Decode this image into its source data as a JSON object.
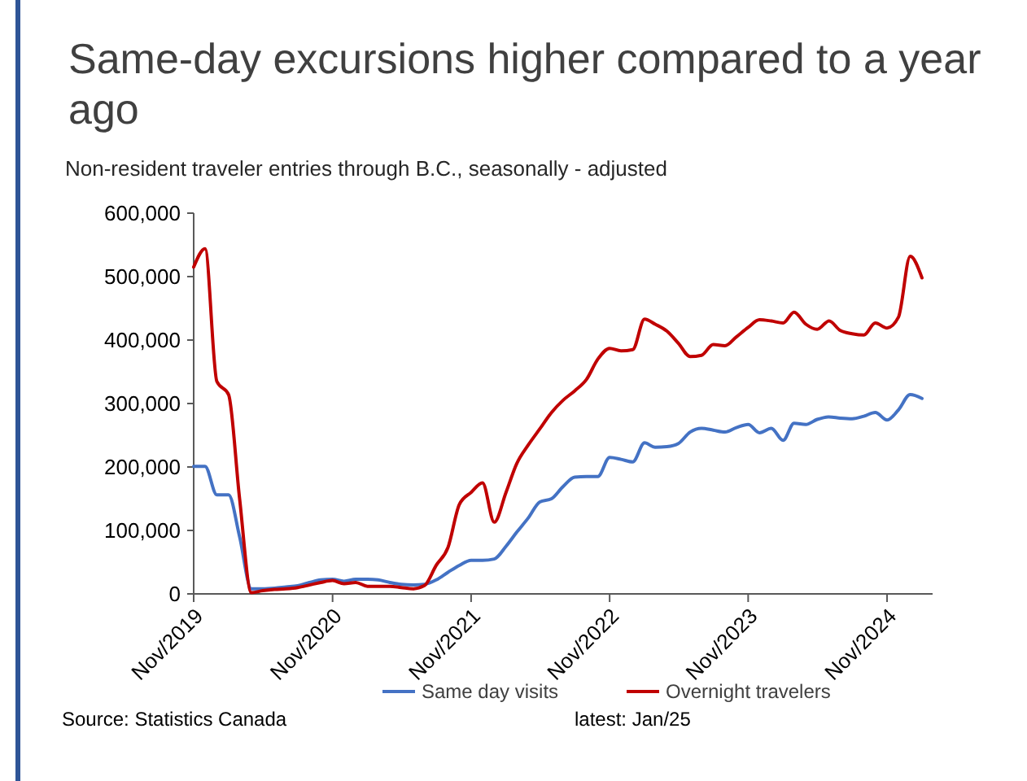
{
  "chart_data": {
    "type": "line",
    "title": "Same-day excursions higher compared to a year ago",
    "subtitle": "Non-resident traveler entries through B.C., seasonally - adjusted",
    "x": [
      "2019-11",
      "2019-12",
      "2020-01",
      "2020-02",
      "2020-03",
      "2020-04",
      "2020-05",
      "2020-06",
      "2020-07",
      "2020-08",
      "2020-09",
      "2020-10",
      "2020-11",
      "2020-12",
      "2021-01",
      "2021-02",
      "2021-03",
      "2021-04",
      "2021-05",
      "2021-06",
      "2021-07",
      "2021-08",
      "2021-09",
      "2021-10",
      "2021-11",
      "2021-12",
      "2022-01",
      "2022-02",
      "2022-03",
      "2022-04",
      "2022-05",
      "2022-06",
      "2022-07",
      "2022-08",
      "2022-09",
      "2022-10",
      "2022-11",
      "2022-12",
      "2023-01",
      "2023-02",
      "2023-03",
      "2023-04",
      "2023-05",
      "2023-06",
      "2023-07",
      "2023-08",
      "2023-09",
      "2023-10",
      "2023-11",
      "2023-12",
      "2024-01",
      "2024-02",
      "2024-03",
      "2024-04",
      "2024-05",
      "2024-06",
      "2024-07",
      "2024-08",
      "2024-09",
      "2024-10",
      "2024-11",
      "2024-12",
      "2025-01",
      "2025-02"
    ],
    "series": [
      {
        "name": "Same day visits",
        "color": "#4472c4",
        "values": [
          201000,
          201000,
          156000,
          156000,
          90000,
          8000,
          8000,
          9000,
          11000,
          13000,
          18000,
          22000,
          23000,
          20000,
          23000,
          23000,
          22000,
          18000,
          15000,
          14000,
          15000,
          22000,
          34000,
          45000,
          53000,
          53000,
          55000,
          75000,
          97000,
          120000,
          145000,
          150000,
          169000,
          184000,
          185000,
          185000,
          215000,
          212000,
          208000,
          238000,
          231000,
          232000,
          237000,
          255000,
          261000,
          258000,
          255000,
          262000,
          267000,
          254000,
          261000,
          242000,
          269000,
          267000,
          275000,
          279000,
          277000,
          276000,
          280000,
          286000,
          274000,
          290000,
          314000,
          308000
        ]
      },
      {
        "name": "Overnight travelers",
        "color": "#c00000",
        "values": [
          515000,
          544000,
          335000,
          314000,
          150000,
          2000,
          5000,
          7000,
          8000,
          10000,
          14000,
          18000,
          21000,
          16000,
          18000,
          12000,
          12000,
          12000,
          10000,
          8000,
          13000,
          45000,
          73000,
          141000,
          160000,
          175000,
          113000,
          160000,
          205000,
          235000,
          260000,
          286000,
          305000,
          320000,
          338000,
          370000,
          387000,
          383000,
          385000,
          433000,
          425000,
          414000,
          395000,
          374000,
          376000,
          393000,
          391000,
          405000,
          420000,
          432000,
          430000,
          427000,
          444000,
          425000,
          417000,
          430000,
          415000,
          410000,
          408000,
          427000,
          419000,
          436000,
          532000,
          498000
        ]
      }
    ],
    "xlim": [
      "2019-11",
      "2025-03"
    ],
    "xticks": [
      {
        "value": "2019-11",
        "label": "Nov/2019"
      },
      {
        "value": "2020-11",
        "label": "Nov/2020"
      },
      {
        "value": "2021-11",
        "label": "Nov/2021"
      },
      {
        "value": "2022-11",
        "label": "Nov/2022"
      },
      {
        "value": "2023-11",
        "label": "Nov/2023"
      },
      {
        "value": "2024-11",
        "label": "Nov/2024"
      }
    ],
    "ylim": [
      0,
      600000
    ],
    "yticks": [
      {
        "value": 0,
        "label": "0"
      },
      {
        "value": 100000,
        "label": "100,000"
      },
      {
        "value": 200000,
        "label": "200,000"
      },
      {
        "value": 300000,
        "label": "300,000"
      },
      {
        "value": 400000,
        "label": "400,000"
      },
      {
        "value": 500000,
        "label": "500,000"
      },
      {
        "value": 600000,
        "label": "600,000"
      }
    ],
    "grid": false,
    "legend": "bottom",
    "marker": "none",
    "line_style": "solid",
    "annotations": [
      "Source: Statistics Canada",
      "latest: Jan/25"
    ]
  }
}
